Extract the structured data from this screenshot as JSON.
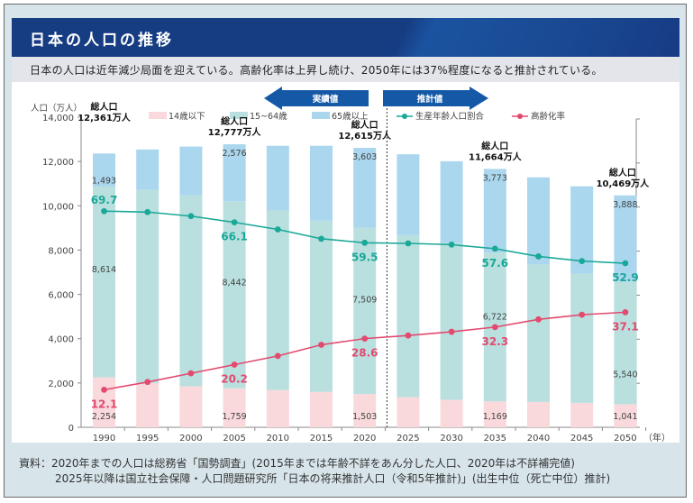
{
  "title": "日本の人口の推移",
  "subtitle": "日本の人口は近年減少局面を迎えている。高齢化率は上昇し続け、2050年には37%程度になると推計されている。",
  "source": {
    "line1": "資料：2020年までの人口は総務省「国勢調査」(2015年までは年齢不詳をあん分した人口、2020年は不詳補完値)",
    "line2": "2025年以降は国立社会保障・人口問題研究所「日本の将来推計人口（令和5年推計)」(出生中位（死亡中位）推計)"
  },
  "arrows": {
    "actual": "実績値",
    "projected": "推計値"
  },
  "colors": {
    "title_bg": "#163c82",
    "age_0_14": "#f9d9dc",
    "age_15_64": "#b9e0df",
    "age_65_plus": "#aad6ee",
    "working_ratio": "#1aa898",
    "aging_rate": "#e24a6e",
    "arrow": "#1559a6"
  },
  "chart_data": {
    "type": "bar",
    "stacked": true,
    "title": "日本の人口の推移",
    "ylabel": "人口（万人）",
    "xlabel": "（年）",
    "ylim": [
      0,
      14000
    ],
    "yticks": [
      0,
      2000,
      4000,
      6000,
      8000,
      10000,
      12000,
      14000
    ],
    "ytick_labels": [
      "0",
      "2,000",
      "4,000",
      "6,000",
      "8,000",
      "10,000",
      "12,000",
      "14,000"
    ],
    "categories": [
      "1990",
      "1995",
      "2000",
      "2005",
      "2010",
      "2015",
      "2020",
      "2025",
      "2030",
      "2035",
      "2040",
      "2045",
      "2050"
    ],
    "series": [
      {
        "name": "14歳以下",
        "type": "bar",
        "values": [
          2254,
          2001,
          1847,
          1759,
          1680,
          1595,
          1503,
          1363,
          1240,
          1169,
          1142,
          1103,
          1041
        ]
      },
      {
        "name": "15~64歳",
        "type": "bar",
        "values": [
          8614,
          8716,
          8622,
          8442,
          8103,
          7735,
          7509,
          7310,
          7076,
          6722,
          6213,
          5832,
          5540
        ]
      },
      {
        "name": "65歳以上",
        "type": "bar",
        "values": [
          1493,
          1826,
          2204,
          2576,
          2925,
          3379,
          3603,
          3653,
          3696,
          3773,
          3929,
          3945,
          3888
        ]
      },
      {
        "name": "生産年齢人口割合",
        "type": "line",
        "unit": "%",
        "values": [
          69.7,
          69.4,
          68.1,
          66.1,
          63.8,
          60.8,
          59.5,
          59.3,
          58.9,
          57.6,
          55.1,
          53.6,
          52.9
        ]
      },
      {
        "name": "高齢化率",
        "type": "line",
        "unit": "%",
        "values": [
          12.1,
          14.6,
          17.4,
          20.2,
          23.0,
          26.6,
          28.6,
          29.6,
          30.8,
          32.3,
          34.8,
          36.3,
          37.1
        ]
      }
    ],
    "right_axis_ylim": [
      0,
      100
    ],
    "bar_labels": [
      {
        "index": 0,
        "age_0_14": "2,254",
        "age_15_64": "8,614",
        "age_65_plus": "1,493"
      },
      {
        "index": 3,
        "age_0_14": "1,759",
        "age_15_64": "8,442",
        "age_65_plus": "2,576"
      },
      {
        "index": 6,
        "age_0_14": "1,503",
        "age_15_64": "7,509",
        "age_65_plus": "3,603"
      },
      {
        "index": 9,
        "age_0_14": "1,169",
        "age_15_64": "6,722",
        "age_65_plus": "3,773"
      },
      {
        "index": 12,
        "age_0_14": "1,041",
        "age_15_64": "5,540",
        "age_65_plus": "3,888"
      }
    ],
    "line_labels": [
      {
        "index": 0,
        "working": "69.7",
        "aging": "12.1"
      },
      {
        "index": 3,
        "working": "66.1",
        "aging": "20.2"
      },
      {
        "index": 6,
        "working": "59.5",
        "aging": "28.6"
      },
      {
        "index": 9,
        "working": "57.6",
        "aging": "32.3"
      },
      {
        "index": 12,
        "working": "52.9",
        "aging": "37.1"
      }
    ],
    "total_labels": [
      {
        "index": 0,
        "line1": "総人口",
        "line2": "12,361万人"
      },
      {
        "index": 3,
        "line1": "総人口",
        "line2": "12,777万人"
      },
      {
        "index": 6,
        "line1": "総人口",
        "line2": "12,615万人"
      },
      {
        "index": 9,
        "line1": "総人口",
        "line2": "11,664万人"
      },
      {
        "index": 12,
        "line1": "総人口",
        "line2": "10,469万人"
      }
    ],
    "legend": [
      "14歳以下",
      "15~64歳",
      "65歳以上",
      "生産年齢人口割合",
      "高齢化率"
    ],
    "legend_position": "top",
    "divider_after": "2020"
  }
}
